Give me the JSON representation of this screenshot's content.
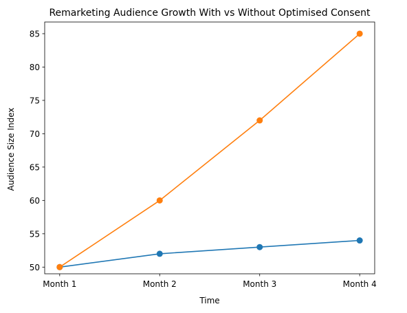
{
  "chart_data": {
    "type": "line",
    "title": "Remarketing Audience Growth With vs Without Optimised Consent",
    "xlabel": "Time",
    "ylabel": "Audience Size Index",
    "categories": [
      "Month 1",
      "Month 2",
      "Month 3",
      "Month 4"
    ],
    "ylim": [
      49,
      86.75
    ],
    "yticks": [
      50,
      55,
      60,
      65,
      70,
      75,
      80,
      85
    ],
    "grid": false,
    "legend": "none",
    "series": [
      {
        "values": [
          50,
          52,
          53,
          54
        ],
        "color": "#1f77b4"
      },
      {
        "values": [
          50,
          60,
          72,
          85
        ],
        "color": "#ff7f0e"
      }
    ]
  }
}
